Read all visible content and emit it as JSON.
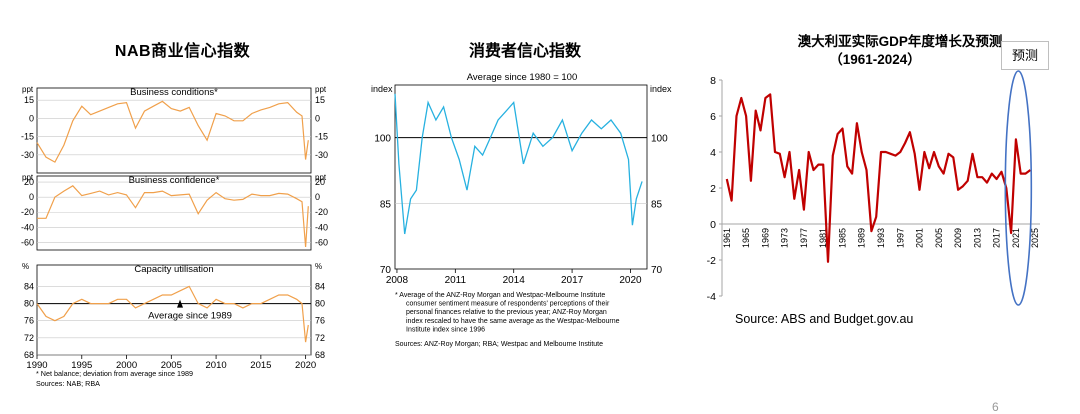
{
  "chart_data": [
    {
      "type": "line",
      "title": "NAB商业信心指数",
      "panels": [
        {
          "title": "Business conditions*",
          "unit_label": "ppt",
          "ylim": [
            -45,
            25
          ],
          "ticks": [
            15,
            0,
            -15,
            -30
          ],
          "x": [
            1990,
            1991,
            1992,
            1993,
            1994,
            1995,
            1996,
            1997,
            1998,
            1999,
            2000,
            2001,
            2002,
            2003,
            2004,
            2005,
            2006,
            2007,
            2008,
            2009,
            2010,
            2011,
            2012,
            2013,
            2014,
            2015,
            2016,
            2017,
            2018,
            2019,
            2019.6,
            2020,
            2020.3
          ],
          "values": [
            -20,
            -32,
            -36,
            -22,
            -2,
            10,
            3,
            6,
            9,
            12,
            13,
            -8,
            6,
            10,
            14,
            8,
            6,
            9,
            -6,
            -18,
            4,
            2,
            -2,
            -2,
            4,
            7,
            9,
            12,
            13,
            5,
            2,
            -34,
            -18
          ]
        },
        {
          "title": "Business confidence*",
          "unit_label": "ppt",
          "ylim": [
            -70,
            28
          ],
          "ticks": [
            20,
            0,
            -20,
            -40,
            -60
          ],
          "x": [
            1990,
            1991,
            1992,
            1993,
            1994,
            1995,
            1996,
            1997,
            1998,
            1999,
            2000,
            2001,
            2002,
            2003,
            2004,
            2005,
            2006,
            2007,
            2008,
            2009,
            2010,
            2011,
            2012,
            2013,
            2014,
            2015,
            2016,
            2017,
            2018,
            2019,
            2019.6,
            2020,
            2020.3
          ],
          "values": [
            -28,
            -28,
            0,
            8,
            15,
            2,
            5,
            8,
            3,
            6,
            3,
            -14,
            6,
            6,
            8,
            2,
            3,
            4,
            -22,
            -4,
            6,
            -2,
            -4,
            -3,
            4,
            2,
            2,
            5,
            4,
            -2,
            -6,
            -66,
            -12
          ]
        },
        {
          "title": "Capacity utilisation",
          "unit_label": "%",
          "ylim": [
            68,
            89
          ],
          "ticks": [
            84,
            80,
            76,
            72,
            68
          ],
          "annotation": "Average since 1989",
          "x": [
            1990,
            1991,
            1992,
            1993,
            1994,
            1995,
            1996,
            1997,
            1998,
            1999,
            2000,
            2001,
            2002,
            2003,
            2004,
            2005,
            2006,
            2007,
            2008,
            2009,
            2010,
            2011,
            2012,
            2013,
            2014,
            2015,
            2016,
            2017,
            2018,
            2019,
            2019.6,
            2020,
            2020.3
          ],
          "values": [
            80,
            77,
            76,
            77,
            80,
            81,
            80,
            80,
            80,
            81,
            81,
            79,
            80,
            81,
            82,
            82,
            83,
            84,
            80,
            79,
            81,
            80,
            80,
            79,
            80,
            80,
            81,
            82,
            82,
            81,
            80,
            71,
            75
          ]
        }
      ],
      "xticks": [
        "1990",
        "1995",
        "2000",
        "2005",
        "2010",
        "2015",
        "2020"
      ],
      "footnote": "*      Net balance; deviation from average since 1989",
      "source": "Sources: NAB; RBA"
    },
    {
      "type": "line",
      "title": "消费者信心指数",
      "subtitle": "Average since 1980 = 100",
      "ylabel": "index",
      "ylim": [
        70,
        112
      ],
      "yticks": [
        100,
        85,
        70
      ],
      "xticks": [
        "2008",
        "2011",
        "2014",
        "2017",
        "2020"
      ],
      "x": [
        2007.9,
        2008.1,
        2008.4,
        2008.7,
        2009.0,
        2009.3,
        2009.6,
        2010.0,
        2010.4,
        2010.8,
        2011.2,
        2011.6,
        2012.0,
        2012.4,
        2012.8,
        2013.2,
        2013.6,
        2014.0,
        2014.5,
        2015.0,
        2015.5,
        2016.0,
        2016.5,
        2017.0,
        2017.5,
        2018.0,
        2018.5,
        2019.0,
        2019.5,
        2019.9,
        2020.1,
        2020.3,
        2020.6
      ],
      "values": [
        110,
        94,
        78,
        86,
        88,
        100,
        108,
        104,
        107,
        100,
        95,
        88,
        98,
        96,
        100,
        104,
        106,
        108,
        94,
        101,
        98,
        100,
        104,
        97,
        101,
        104,
        102,
        104,
        101,
        95,
        80,
        86,
        90
      ],
      "footnote_lines": [
        "*      Average of the ANZ-Roy Morgan and Westpac-Melbourne Institute",
        "consumer sentiment measure of respondents' perceptions of their",
        "personal finances relative to the previous year; ANZ-Roy Morgan",
        "index rescaled to have the same average as the Westpac-Melbourne",
        "Institute index since 1996"
      ],
      "source": "Sources: ANZ-Roy Morgan; RBA; Westpac and Melbourne Institute"
    },
    {
      "type": "line",
      "title": "澳大利亚实际GDP年度增长及预测",
      "subtitle": "（1961-2024）",
      "badge": "预测",
      "ylim": [
        -4,
        8
      ],
      "yticks": [
        "8",
        "6",
        "4",
        "2",
        "0",
        "-2",
        "-4"
      ],
      "xticks": [
        "1961",
        "1965",
        "1969",
        "1973",
        "1977",
        "1981",
        "1985",
        "1989",
        "1993",
        "1997",
        "2001",
        "2005",
        "2009",
        "2013",
        "2017",
        "2021",
        "2025"
      ],
      "x": [
        1961,
        1962,
        1963,
        1964,
        1965,
        1966,
        1967,
        1968,
        1969,
        1970,
        1971,
        1972,
        1973,
        1974,
        1975,
        1976,
        1977,
        1978,
        1979,
        1980,
        1981,
        1982,
        1983,
        1984,
        1985,
        1986,
        1987,
        1988,
        1989,
        1990,
        1991,
        1992,
        1993,
        1994,
        1995,
        1996,
        1997,
        1998,
        1999,
        2000,
        2001,
        2002,
        2003,
        2004,
        2005,
        2006,
        2007,
        2008,
        2009,
        2010,
        2011,
        2012,
        2013,
        2014,
        2015,
        2016,
        2017,
        2018,
        2019,
        2020,
        2021,
        2022,
        2023,
        2024
      ],
      "values": [
        2.5,
        1.3,
        6.0,
        7.0,
        6.0,
        2.4,
        6.3,
        5.2,
        7.0,
        7.2,
        4.0,
        3.9,
        2.6,
        4.0,
        1.4,
        3.0,
        0.8,
        4.0,
        3.0,
        3.3,
        3.3,
        -2.1,
        3.8,
        5.0,
        5.3,
        3.2,
        2.8,
        5.6,
        4.0,
        3.0,
        -0.4,
        0.4,
        4.0,
        4.0,
        3.9,
        3.8,
        4.0,
        4.5,
        5.1,
        3.9,
        1.9,
        4.0,
        3.1,
        4.0,
        3.2,
        2.8,
        3.9,
        3.7,
        1.9,
        2.1,
        2.4,
        3.9,
        2.6,
        2.6,
        2.3,
        2.8,
        2.5,
        2.9,
        2.0,
        -0.5,
        4.7,
        2.8,
        2.8,
        3.0
      ],
      "line_color": "#c00000",
      "highlight_color": "#4472c4",
      "source": "Source: ABS and Budget.gov.au"
    }
  ],
  "page_number": "6"
}
